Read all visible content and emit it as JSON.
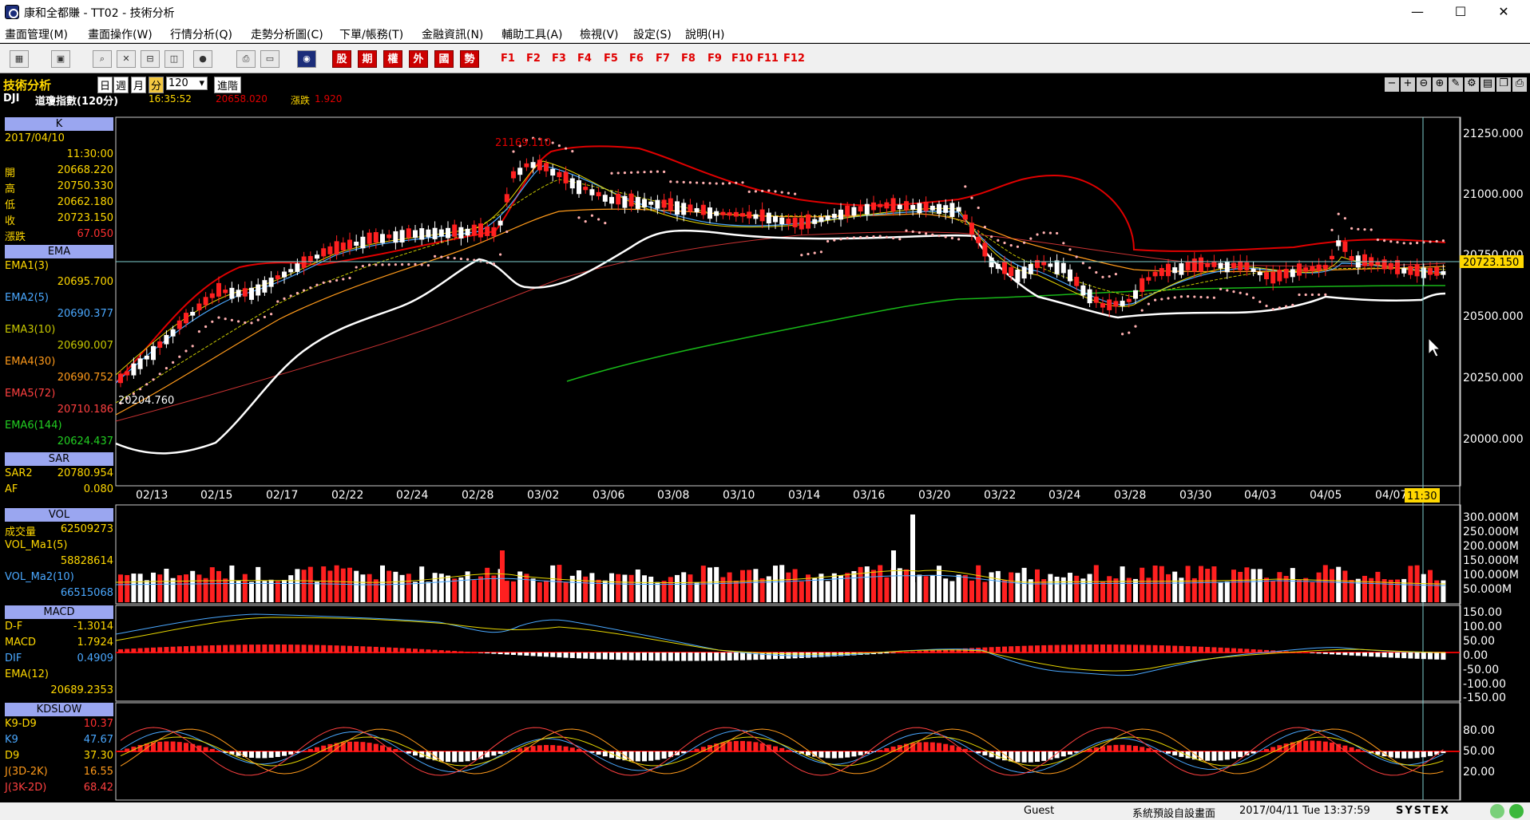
{
  "window": {
    "title": "康和全都賺 - TT02 - 技術分析",
    "min": "—",
    "max": "☐",
    "close": "✕"
  },
  "menu": [
    "畫面管理(M)",
    "畫面操作(W)",
    "行情分析(Q)",
    "走勢分析圖(C)",
    "下單/帳務(T)",
    "金融資訊(N)",
    "輔助工具(A)",
    "檢視(V)",
    "設定(S)",
    "說明(H)"
  ],
  "toolbar": {
    "red_buttons": [
      "股",
      "期",
      "權",
      "外",
      "國",
      "勢"
    ],
    "fkeys": [
      "F1",
      "F2",
      "F3",
      "F4",
      "F5",
      "F6",
      "F7",
      "F8",
      "F9",
      "F10",
      "F11",
      "F12"
    ]
  },
  "header": {
    "section_title": "技術分析",
    "period_day": "日",
    "period_week": "週",
    "period_month": "月",
    "period_min": "分",
    "count": "120",
    "advanced": "進階",
    "symbol": "DJI",
    "name": "道瓊指數(120分)",
    "time": "16:35:52",
    "price": "20658.020",
    "change_label": "漲跌",
    "change": "1.920"
  },
  "panel": {
    "k_title": "K",
    "date": "2017/04/10",
    "time": "11:30:00",
    "open_label": "開",
    "open": "20668.220",
    "high_label": "高",
    "high": "20750.330",
    "low_label": "低",
    "low": "20662.180",
    "close_label": "收",
    "close": "20723.150",
    "chg_label": "漲跌",
    "chg": "67.050",
    "ema_title": "EMA",
    "ema1_label": "EMA1(3)",
    "ema1": "20695.700",
    "ema2_label": "EMA2(5)",
    "ema2": "20690.377",
    "ema3_label": "EMA3(10)",
    "ema3": "20690.007",
    "ema4_label": "EMA4(30)",
    "ema4": "20690.752",
    "ema5_label": "EMA5(72)",
    "ema5": "20710.186",
    "ema6_label": "EMA6(144)",
    "ema6": "20624.437",
    "sar_title": "SAR",
    "sar2_label": "SAR2",
    "sar2": "20780.954",
    "af_label": "AF",
    "af": "0.080",
    "vol_title": "VOL",
    "vol_label": "成交量",
    "vol": "62509273",
    "volma1_label": "VOL_Ma1(5)",
    "volma1": "58828614",
    "volma2_label": "VOL_Ma2(10)",
    "volma2": "66515068",
    "macd_title": "MACD",
    "df_label": "D-F",
    "df": "-1.3014",
    "macd_label": "MACD",
    "macd": "1.7924",
    "dif_label": "DIF",
    "dif": "0.4909",
    "ema12_label": "EMA(12)",
    "ema12": "20689.2353",
    "kd_title": "KDSLOW",
    "k9d9_label": "K9-D9",
    "k9d9": "10.37",
    "k9_label": "K9",
    "k9": "47.67",
    "d9_label": "D9",
    "d9": "37.30",
    "j1_label": "J(3D-2K)",
    "j1": "16.55",
    "j2_label": "J(3K-2D)",
    "j2": "68.42"
  },
  "chart": {
    "price_axis": [
      "21250.000",
      "21000.000",
      "20750.000",
      "20500.000",
      "20250.000",
      "20000.000"
    ],
    "dates": [
      "02/13",
      "02/15",
      "02/17",
      "02/22",
      "02/24",
      "02/28",
      "03/02",
      "03/06",
      "03/08",
      "03/10",
      "03/14",
      "03/16",
      "03/20",
      "03/22",
      "03/24",
      "03/28",
      "03/30",
      "04/03",
      "04/05",
      "04/07"
    ],
    "cursor_time": "11:30",
    "current_price_tag": "20723.150",
    "high_marker": "21169.110",
    "low_marker": "20204.760",
    "vol_axis": [
      "300.000M",
      "250.000M",
      "200.000M",
      "150.000M",
      "100.000M",
      "50.000M"
    ],
    "macd_axis": [
      "150.00",
      "100.00",
      "50.00",
      "0.00",
      "-50.00",
      "-100.00",
      "-150.00"
    ],
    "kd_axis": [
      "80.00",
      "50.00",
      "20.00"
    ]
  },
  "status": {
    "user": "Guest",
    "layout": "系統預設自設畫面",
    "datetime": "2017/04/11 Tue 13:37:59",
    "brand": "SYSTEX"
  }
}
